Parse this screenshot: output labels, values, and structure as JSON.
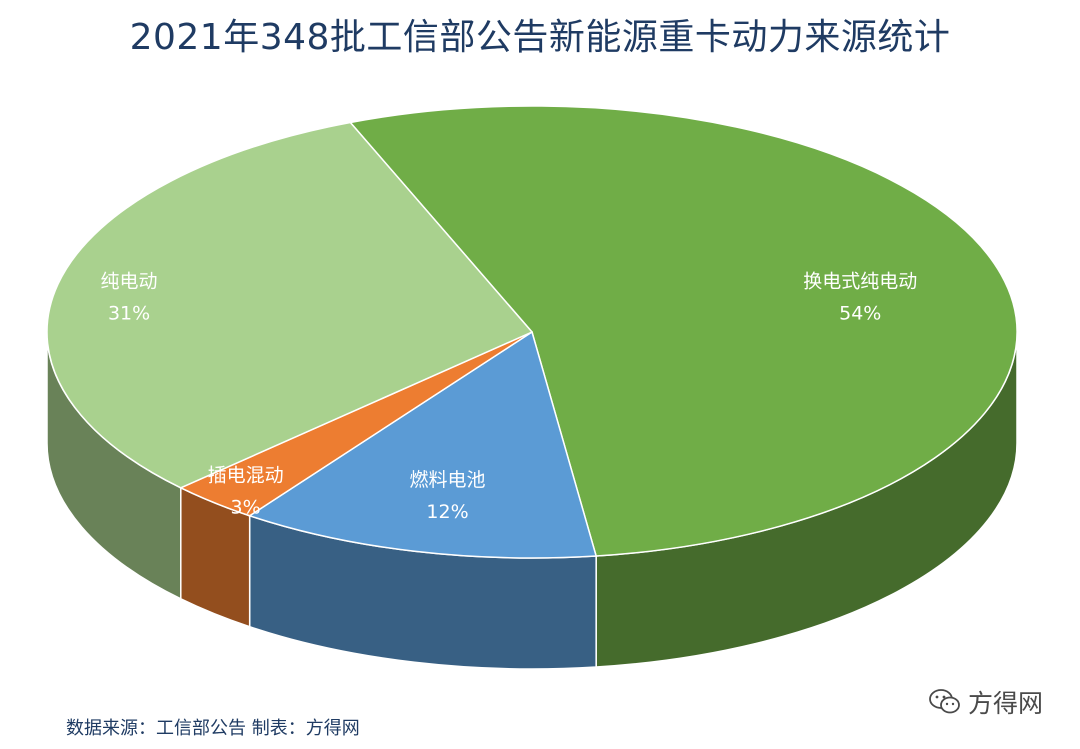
{
  "chart_data": {
    "type": "pie",
    "title": "2021年348批工信部公告新能源重卡动力来源统计",
    "slices": [
      {
        "name": "换电式纯电动",
        "value": 54,
        "value_label": "54%",
        "color": "#70ad47"
      },
      {
        "name": "燃料电池",
        "value": 12,
        "value_label": "12%",
        "color": "#5b9bd5"
      },
      {
        "name": "插电混动",
        "value": 3,
        "value_label": "3%",
        "color": "#ed7d31"
      },
      {
        "name": "纯电动",
        "value": 31,
        "value_label": "31%",
        "color": "#a9d18e"
      }
    ],
    "style": "3d",
    "legend": "none"
  },
  "footer": {
    "source_text": "数据来源：工信部公告 制表：方得网"
  },
  "brand": {
    "name": "方得网",
    "icon": "wechat-icon"
  }
}
